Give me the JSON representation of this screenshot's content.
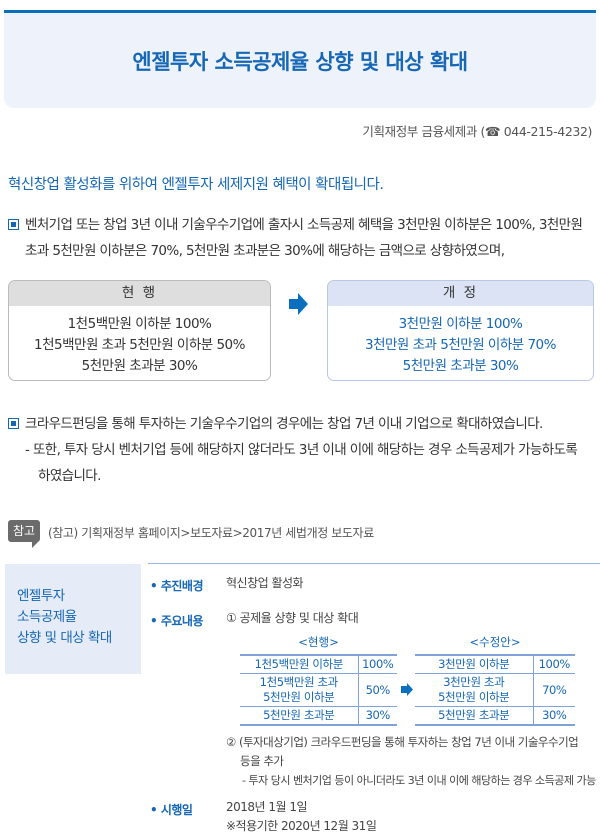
{
  "header": {
    "title": "엔젤투자 소득공제율 상향 및 대상 확대"
  },
  "contact": "기획재정부 금융세제과 (☎ 044-215-4232)",
  "intro": "혁신창업 활성화를 위하여 엔젤투자 세제지원 혜택이 확대됩니다.",
  "para1": {
    "line1": "벤처기업 또는 창업 3년 이내 기술우수기업에 출자시 소득공제 혜택을 3천만원 이하분은 100%, 3천만원",
    "line2": "초과 5천만원 이하분은 70%, 5천만원 초과분은 30%에 해당하는 금액으로 상향하였으며,"
  },
  "current": {
    "title": "현 행",
    "rows": [
      "1천5백만원 이하분  100%",
      "1천5백만원 초과 5천만원 이하분  50%",
      "5천만원 초과분  30%"
    ]
  },
  "revised": {
    "title": "개 정",
    "rows": [
      "3천만원 이하분  100%",
      "3천만원 초과 5천만원 이하분  70%",
      "5천만원 초과분  30%"
    ]
  },
  "para2": {
    "line1": "크라우드펀딩을 통해 투자하는 기술우수기업의 경우에는 창업 7년 이내 기업으로 확대하였습니다.",
    "sub1": "- 또한, 투자 당시 벤처기업 등에 해당하지 않더라도 3년 이내 이에 해당하는 경우 소득공제가 가능하도록",
    "sub2": "하였습니다."
  },
  "reference": {
    "tag": "참고",
    "text": "(참고) 기획재정부 홈페이지>보도자료>2017년 세법개정 보도자료"
  },
  "summary": {
    "side": [
      "엔젤투자",
      "소득공제율",
      "상향 및 대상 확대"
    ],
    "bg_label": "• 추진배경",
    "bg_value": "혁신창업 활성화",
    "main_label": "• 주요내용",
    "main_item1": "① 공제율 상향 및 대상 확대",
    "tbl_current": {
      "caption": "<현행>",
      "rows": [
        [
          "1천5백만원 이하분",
          "100%"
        ],
        [
          "1천5백만원 초과\n5천만원 이하분",
          "50%"
        ],
        [
          "5천만원 초과분",
          "30%"
        ]
      ]
    },
    "tbl_revised": {
      "caption": "<수정안>",
      "rows": [
        [
          "3천만원 이하분",
          "100%"
        ],
        [
          "3천만원 초과\n5천만원 이하분",
          "70%"
        ],
        [
          "5천만원 초과분",
          "30%"
        ]
      ]
    },
    "main_item2a": "② (투자대상기업) 크라우드펀딩을 통해 투자하는 창업 7년 이내 기술우수기업",
    "main_item2b": "등을 추가",
    "main_item2c": "- 투자 당시 벤처기업 등이 아니더라도 3년 이내 이에 해당하는 경우 소득공제 가능",
    "date_label": "• 시행일",
    "date_value": "2018년 1월 1일",
    "date_note": "※적용기한 2020년 12월 31일"
  },
  "colors": {
    "accent": "#1667b5",
    "header_bg": "#eef2fa"
  }
}
